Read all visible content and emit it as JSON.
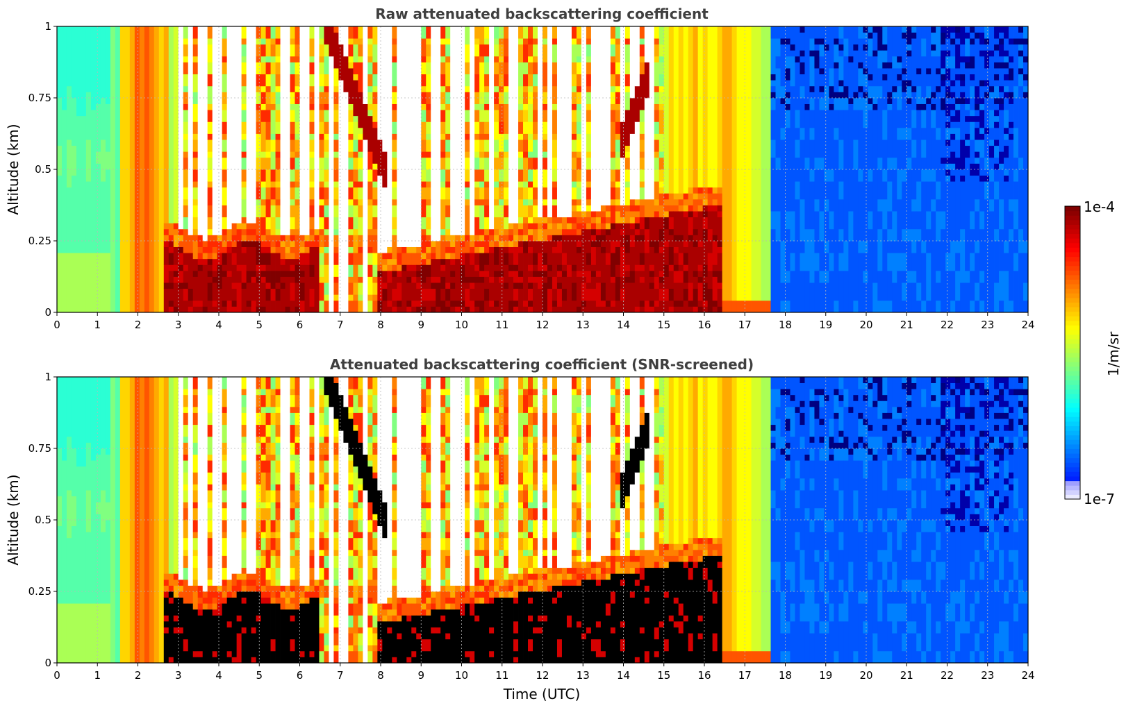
{
  "chart_data": [
    {
      "type": "heatmap",
      "title": "Raw attenuated backscattering coefficient",
      "xlabel": "",
      "ylabel": "Altitude (km)",
      "xlim": [
        0,
        24
      ],
      "ylim": [
        0,
        1
      ],
      "x_ticks": [
        "0",
        "1",
        "2",
        "3",
        "4",
        "5",
        "6",
        "7",
        "8",
        "9",
        "10",
        "11",
        "12",
        "13",
        "14",
        "15",
        "16",
        "17",
        "18",
        "19",
        "20",
        "21",
        "22",
        "23",
        "24"
      ],
      "y_ticks": [
        "0",
        "0.25",
        "0.5",
        "0.75",
        "1"
      ],
      "grid": true,
      "screened": false,
      "colorscale": "jet",
      "color_scale_type": "log"
    },
    {
      "type": "heatmap",
      "title": "Attenuated backscattering coefficient (SNR-screened)",
      "xlabel": "Time (UTC)",
      "ylabel": "Altitude (km)",
      "xlim": [
        0,
        24
      ],
      "ylim": [
        0,
        1
      ],
      "x_ticks": [
        "0",
        "1",
        "2",
        "3",
        "4",
        "5",
        "6",
        "7",
        "8",
        "9",
        "10",
        "11",
        "12",
        "13",
        "14",
        "15",
        "16",
        "17",
        "18",
        "19",
        "20",
        "21",
        "22",
        "23",
        "24"
      ],
      "y_ticks": [
        "0",
        "0.25",
        "0.5",
        "0.75",
        "1"
      ],
      "grid": true,
      "screened": true,
      "colorscale": "jet",
      "color_scale_type": "log"
    }
  ],
  "colorbar": {
    "label": "1/m/sr",
    "max_label": "1e-4",
    "min_label": "1e-7",
    "vmin": 1e-07,
    "vmax": 0.0001,
    "scale": "log"
  }
}
